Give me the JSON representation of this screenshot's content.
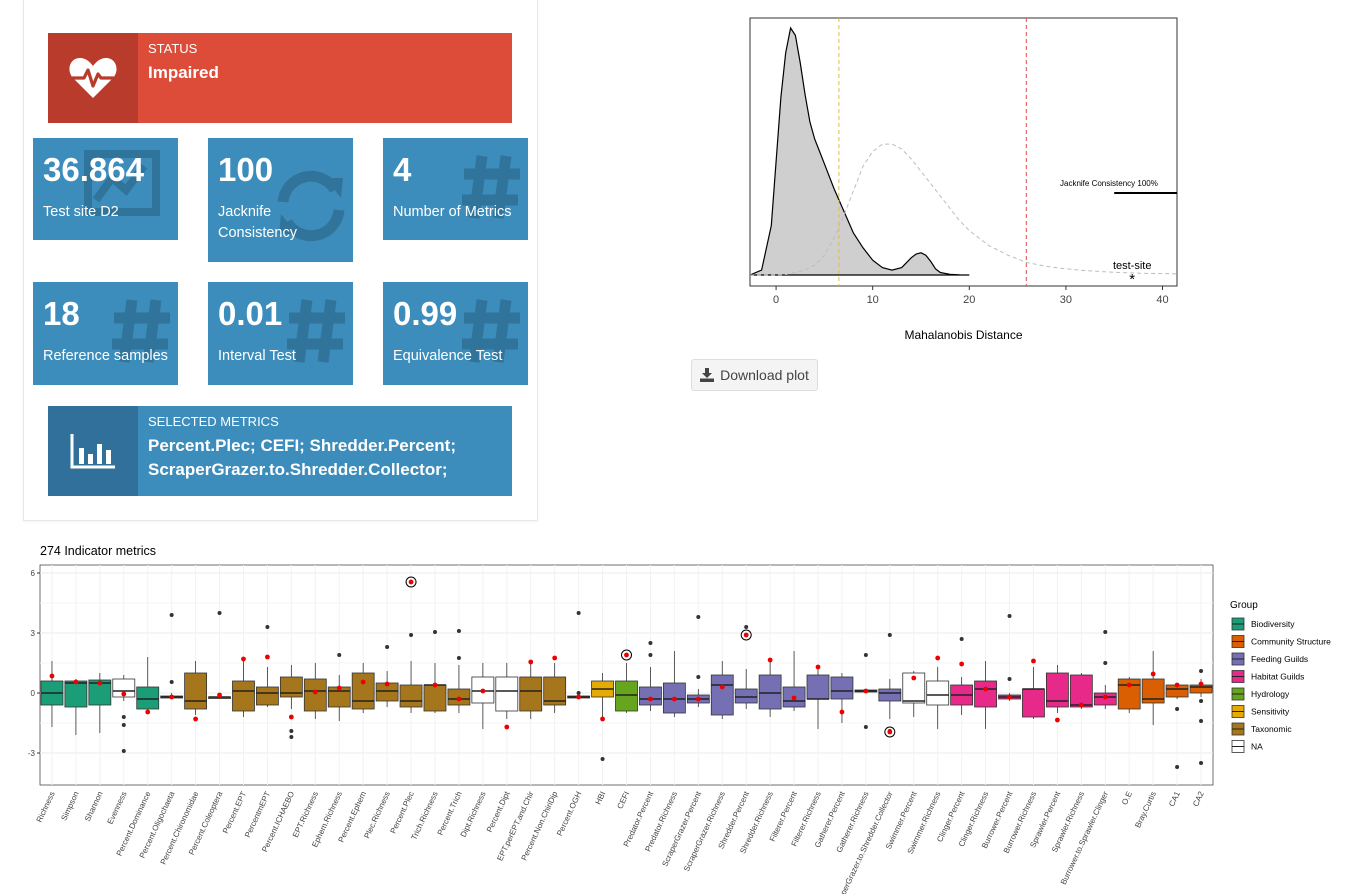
{
  "status_box": {
    "title": "STATUS",
    "value": "Impaired",
    "color": "#dd4b39",
    "icon": "heartbeat-icon"
  },
  "value_boxes": [
    {
      "value": "36.864",
      "subtitle": "Test site D2",
      "icon": "chart-icon"
    },
    {
      "value": "100",
      "subtitle": "Jacknife Consistency",
      "icon": "refresh-icon"
    },
    {
      "value": "4",
      "subtitle": "Number of Metrics",
      "icon": "hashtag-icon"
    },
    {
      "value": "18",
      "subtitle": "Reference samples",
      "icon": "hashtag-icon"
    },
    {
      "value": "0.01",
      "subtitle": "Interval Test",
      "icon": "hashtag-icon"
    },
    {
      "value": "0.99",
      "subtitle": "Equivalence Test",
      "icon": "hashtag-icon"
    }
  ],
  "selected_box": {
    "title": "SELECTED METRICS",
    "value_line1": "Percent.Plec; CEFI; Shredder.Percent;",
    "value_line2": "ScraperGrazer.to.Shredder.Collector;",
    "color": "#3c8dbc",
    "icon": "bar-chart-icon"
  },
  "download_button": {
    "label": "Download plot",
    "icon": "download-icon"
  },
  "chart_data": [
    {
      "type": "area",
      "xlabel": "Mahalanobis Distance",
      "xlim": [
        -2.7,
        41.5
      ],
      "xticks": [
        0,
        10,
        20,
        30,
        40
      ],
      "ylim": [
        0,
        1
      ],
      "grid": false,
      "reference_density": {
        "x": [
          -2.7,
          -1.5,
          -0.5,
          0.5,
          1,
          1.5,
          2,
          2.5,
          3,
          3.5,
          4,
          4.5,
          5,
          6,
          7,
          8,
          9,
          10,
          11,
          12,
          13,
          14,
          14.5,
          15,
          15.5,
          16,
          16.5,
          17,
          18,
          19,
          20
        ],
        "y": [
          0.0,
          0.02,
          0.2,
          0.72,
          0.9,
          1.0,
          0.97,
          0.86,
          0.73,
          0.62,
          0.55,
          0.5,
          0.45,
          0.35,
          0.26,
          0.17,
          0.11,
          0.06,
          0.03,
          0.02,
          0.03,
          0.07,
          0.085,
          0.09,
          0.08,
          0.055,
          0.025,
          0.01,
          0.003,
          0.001,
          0.0
        ]
      },
      "chisq_density": {
        "x": [
          -2.7,
          0,
          1,
          2,
          3,
          4,
          5,
          6,
          7,
          8,
          9,
          10,
          11,
          12,
          13,
          14,
          15,
          16,
          17,
          18,
          19,
          20,
          22,
          24,
          26,
          28,
          30,
          32,
          35,
          38,
          41.5
        ],
        "y": [
          0.0,
          0.0,
          0.002,
          0.01,
          0.02,
          0.04,
          0.08,
          0.15,
          0.24,
          0.34,
          0.44,
          0.5,
          0.53,
          0.53,
          0.51,
          0.47,
          0.42,
          0.37,
          0.32,
          0.27,
          0.22,
          0.18,
          0.12,
          0.08,
          0.05,
          0.035,
          0.025,
          0.018,
          0.011,
          0.007,
          0.005
        ]
      },
      "vline_orange": 6.5,
      "vline_red": 25.9,
      "test_site": {
        "x": 36.864,
        "label": "test-site"
      },
      "jacknife_label": "Jacknife Consistency 100%",
      "jacknife_segment": [
        35.0,
        41.5
      ],
      "colors": {
        "density_fill": "#cfcfcf",
        "vline_orange": "#e6b84a",
        "vline_red": "#e34a4a",
        "chisq": "#bdbdbd"
      }
    },
    {
      "type": "box",
      "title": "274 Indicator metrics",
      "ylim": [
        -4.6,
        6.4
      ],
      "yticks": [
        -3,
        0,
        3,
        6
      ],
      "legend_title": "Group",
      "legend_position": "right",
      "groups": [
        {
          "name": "Biodiversity",
          "color": "#1b9e77"
        },
        {
          "name": "Community Structure",
          "color": "#d95f02"
        },
        {
          "name": "Feeding Guilds",
          "color": "#7570b3"
        },
        {
          "name": "Habitat Guilds",
          "color": "#e7298a"
        },
        {
          "name": "Hydrology",
          "color": "#66a61e"
        },
        {
          "name": "Sensitivity",
          "color": "#e6ab02"
        },
        {
          "name": "Taxonomic",
          "color": "#a6761d"
        },
        {
          "name": "NA",
          "color": "#ffffff"
        }
      ],
      "metrics": [
        {
          "name": "Richness",
          "g": 0,
          "q1": -0.6,
          "med": 0,
          "q3": 0.6,
          "lo": -1.7,
          "hi": 1.6,
          "out": [],
          "test": 0.85,
          "sel": false
        },
        {
          "name": "Simpson",
          "g": 0,
          "q1": -0.7,
          "med": 0.5,
          "q3": 0.6,
          "lo": -2.1,
          "hi": 0.7,
          "out": [],
          "test": 0.55,
          "sel": false
        },
        {
          "name": "Shannon",
          "g": 0,
          "q1": -0.6,
          "med": 0.5,
          "q3": 0.65,
          "lo": -2.0,
          "hi": 1.0,
          "out": [],
          "test": 0.5,
          "sel": false
        },
        {
          "name": "Evenness",
          "g": 7,
          "q1": -0.2,
          "med": 0.1,
          "q3": 0.7,
          "lo": -0.4,
          "hi": 0.9,
          "out": [
            -1.2,
            -1.6,
            -2.9
          ],
          "test": -0.05,
          "sel": false
        },
        {
          "name": "Percent.Dominance",
          "g": 0,
          "q1": -0.8,
          "med": -0.3,
          "q3": 0.3,
          "lo": -1.0,
          "hi": 1.8,
          "out": [],
          "test": -0.95,
          "sel": false
        },
        {
          "name": "Percent.Oligochaeta",
          "g": 6,
          "q1": -0.25,
          "med": -0.2,
          "q3": -0.15,
          "lo": -0.3,
          "hi": 0.0,
          "out": [
            0.55,
            3.9
          ],
          "test": -0.2,
          "sel": false
        },
        {
          "name": "Percent.Chironomidae",
          "g": 6,
          "q1": -0.8,
          "med": -0.4,
          "q3": 1.0,
          "lo": -1.1,
          "hi": 1.6,
          "out": [],
          "test": -1.3,
          "sel": false
        },
        {
          "name": "Percent.Coleoptera",
          "g": 6,
          "q1": -0.25,
          "med": -0.2,
          "q3": -0.2,
          "lo": -0.3,
          "hi": -0.1,
          "out": [
            4.0
          ],
          "test": -0.1,
          "sel": false
        },
        {
          "name": "Percent.EPT",
          "g": 6,
          "q1": -0.9,
          "med": 0.1,
          "q3": 0.6,
          "lo": -1.2,
          "hi": 1.6,
          "out": [],
          "test": 1.7,
          "sel": false
        },
        {
          "name": "PercentmEPT",
          "g": 6,
          "q1": -0.6,
          "med": 0.0,
          "q3": 0.3,
          "lo": -0.7,
          "hi": 1.3,
          "out": [
            3.3
          ],
          "test": 1.8,
          "sel": false
        },
        {
          "name": "Percent.ICHAEBO",
          "g": 6,
          "q1": -0.2,
          "med": 0.0,
          "q3": 0.8,
          "lo": -0.8,
          "hi": 1.4,
          "out": [
            -1.9,
            -2.2
          ],
          "test": -1.2,
          "sel": false
        },
        {
          "name": "EPT.Richness",
          "g": 6,
          "q1": -0.9,
          "med": 0.1,
          "q3": 0.7,
          "lo": -1.3,
          "hi": 1.5,
          "out": [],
          "test": 0.05,
          "sel": false
        },
        {
          "name": "Ephem.Richness",
          "g": 6,
          "q1": -0.7,
          "med": 0.1,
          "q3": 0.3,
          "lo": -1.4,
          "hi": 0.9,
          "out": [
            1.9
          ],
          "test": 0.25,
          "sel": false
        },
        {
          "name": "Percent.Ephem",
          "g": 6,
          "q1": -0.8,
          "med": -0.4,
          "q3": 1.0,
          "lo": -1.0,
          "hi": 1.5,
          "out": [],
          "test": 0.55,
          "sel": false
        },
        {
          "name": "Plec.Richness",
          "g": 6,
          "q1": -0.4,
          "med": 0.1,
          "q3": 0.5,
          "lo": -0.7,
          "hi": 1.1,
          "out": [
            2.3
          ],
          "test": 0.45,
          "sel": false
        },
        {
          "name": "Percent.Plec",
          "g": 6,
          "q1": -0.7,
          "med": -0.4,
          "q3": 0.4,
          "lo": -1.0,
          "hi": 1.6,
          "out": [
            2.9
          ],
          "test": 5.55,
          "sel": true
        },
        {
          "name": "Trich.Richness",
          "g": 6,
          "q1": -0.9,
          "med": 0.4,
          "q3": 0.4,
          "lo": -1.0,
          "hi": 1.5,
          "out": [
            3.05
          ],
          "test": 0.4,
          "sel": false
        },
        {
          "name": "Percent.Trich",
          "g": 6,
          "q1": -0.6,
          "med": -0.3,
          "q3": 0.2,
          "lo": -1.0,
          "hi": 1.4,
          "out": [
            1.75,
            3.1
          ],
          "test": -0.3,
          "sel": false
        },
        {
          "name": "Dipt.Richness",
          "g": 7,
          "q1": -0.5,
          "med": 0.1,
          "q3": 0.8,
          "lo": -1.8,
          "hi": 1.5,
          "out": [],
          "test": 0.1,
          "sel": false
        },
        {
          "name": "Percent.Dipt",
          "g": 7,
          "q1": -0.9,
          "med": 0.1,
          "q3": 0.8,
          "lo": -1.3,
          "hi": 1.5,
          "out": [],
          "test": -1.7,
          "sel": false
        },
        {
          "name": "EPT.perEPT.and.Chir",
          "g": 6,
          "q1": -0.9,
          "med": 0.1,
          "q3": 0.8,
          "lo": -1.3,
          "hi": 1.5,
          "out": [],
          "test": 1.55,
          "sel": false
        },
        {
          "name": "Percent.Non.ChiriDip",
          "g": 6,
          "q1": -0.6,
          "med": -0.4,
          "q3": 0.8,
          "lo": -1.0,
          "hi": 1.5,
          "out": [],
          "test": 1.75,
          "sel": false
        },
        {
          "name": "Percent.OGH",
          "g": 6,
          "q1": -0.25,
          "med": -0.2,
          "q3": -0.15,
          "lo": -0.3,
          "hi": -0.1,
          "out": [
            0.0,
            4.0
          ],
          "test": -0.2,
          "sel": false
        },
        {
          "name": "HBI",
          "g": 5,
          "q1": -0.2,
          "med": 0.2,
          "q3": 0.6,
          "lo": -1.2,
          "hi": 1.0,
          "out": [
            -3.3
          ],
          "test": -1.3,
          "sel": false
        },
        {
          "name": "CEFI",
          "g": 4,
          "q1": -0.9,
          "med": -0.1,
          "q3": 0.6,
          "lo": -1.0,
          "hi": 1.5,
          "out": [],
          "test": 1.9,
          "sel": true
        },
        {
          "name": "Predator.Percent",
          "g": 2,
          "q1": -0.6,
          "med": -0.3,
          "q3": 0.3,
          "lo": -0.9,
          "hi": 1.3,
          "out": [
            1.9,
            2.5
          ],
          "test": -0.3,
          "sel": false
        },
        {
          "name": "Predator.Richness",
          "g": 2,
          "q1": -1.0,
          "med": -0.3,
          "q3": 0.5,
          "lo": -1.2,
          "hi": 2.1,
          "out": [],
          "test": -0.3,
          "sel": false
        },
        {
          "name": "ScraperGrazer.Percent",
          "g": 2,
          "q1": -0.5,
          "med": -0.3,
          "q3": -0.1,
          "lo": -0.7,
          "hi": 0.2,
          "out": [
            0.8,
            3.8
          ],
          "test": -0.3,
          "sel": false
        },
        {
          "name": "ScraperGrazer.Richness",
          "g": 2,
          "q1": -1.1,
          "med": 0.4,
          "q3": 0.9,
          "lo": -1.3,
          "hi": 1.6,
          "out": [],
          "test": 0.3,
          "sel": false
        },
        {
          "name": "Shredder.Percent",
          "g": 2,
          "q1": -0.5,
          "med": -0.2,
          "q3": 0.2,
          "lo": -0.8,
          "hi": 1.2,
          "out": [
            3.3
          ],
          "test": 2.9,
          "sel": true
        },
        {
          "name": "Shredder.Richness",
          "g": 2,
          "q1": -0.8,
          "med": 0.0,
          "q3": 0.9,
          "lo": -1.2,
          "hi": 1.6,
          "out": [],
          "test": 1.65,
          "sel": false
        },
        {
          "name": "Filterer.Percent",
          "g": 2,
          "q1": -0.7,
          "med": -0.4,
          "q3": 0.3,
          "lo": -0.9,
          "hi": 2.1,
          "out": [],
          "test": -0.25,
          "sel": false
        },
        {
          "name": "Filterer.Richness",
          "g": 2,
          "q1": -0.3,
          "med": -0.3,
          "q3": 0.9,
          "lo": -1.8,
          "hi": 1.3,
          "out": [],
          "test": 1.3,
          "sel": false
        },
        {
          "name": "Gatherer.Percent",
          "g": 2,
          "q1": -0.3,
          "med": 0.1,
          "q3": 0.8,
          "lo": -1.5,
          "hi": 1.0,
          "out": [],
          "test": -0.95,
          "sel": false
        },
        {
          "name": "Gatherer.Richness",
          "g": 2,
          "q1": 0.05,
          "med": 0.1,
          "q3": 0.15,
          "lo": 0.0,
          "hi": 0.2,
          "out": [
            1.9,
            -1.7
          ],
          "test": 0.1,
          "sel": false
        },
        {
          "name": "ScraperGrazer.to.Shredder.Collector",
          "g": 2,
          "q1": -0.4,
          "med": 0.0,
          "q3": 0.2,
          "lo": -1.3,
          "hi": 0.7,
          "out": [
            2.9,
            -1.9
          ],
          "test": -1.95,
          "sel": true
        },
        {
          "name": "Swimmer.Percent",
          "g": 7,
          "q1": -0.5,
          "med": -0.4,
          "q3": 1.0,
          "lo": -1.2,
          "hi": 1.1,
          "out": [],
          "test": 0.75,
          "sel": false
        },
        {
          "name": "Swimmer.Richness",
          "g": 7,
          "q1": -0.6,
          "med": -0.1,
          "q3": 0.6,
          "lo": -1.8,
          "hi": 1.3,
          "out": [],
          "test": 1.75,
          "sel": false
        },
        {
          "name": "Clinger.Percent",
          "g": 3,
          "q1": -0.6,
          "med": -0.1,
          "q3": 0.4,
          "lo": -1.1,
          "hi": 0.8,
          "out": [
            2.7
          ],
          "test": 1.45,
          "sel": false
        },
        {
          "name": "Clinger.Richness",
          "g": 3,
          "q1": -0.7,
          "med": 0.2,
          "q3": 0.6,
          "lo": -1.8,
          "hi": 1.6,
          "out": [],
          "test": 0.2,
          "sel": false
        },
        {
          "name": "Burrower.Percent",
          "g": 3,
          "q1": -0.3,
          "med": -0.2,
          "q3": -0.1,
          "lo": -0.4,
          "hi": 0.0,
          "out": [
            0.7,
            3.85
          ],
          "test": -0.2,
          "sel": false
        },
        {
          "name": "Burrower.Richness",
          "g": 3,
          "q1": -1.2,
          "med": 0.2,
          "q3": 0.2,
          "lo": -1.3,
          "hi": 1.3,
          "out": [],
          "test": 1.6,
          "sel": false
        },
        {
          "name": "Sprawler.Percent",
          "g": 3,
          "q1": -0.7,
          "med": -0.4,
          "q3": 1.0,
          "lo": -1.0,
          "hi": 1.4,
          "out": [],
          "test": -1.35,
          "sel": false
        },
        {
          "name": "Sprawler.Richness",
          "g": 3,
          "q1": -0.7,
          "med": -0.6,
          "q3": 0.9,
          "lo": -0.8,
          "hi": 1.0,
          "out": [],
          "test": -0.6,
          "sel": false
        },
        {
          "name": "Burrower.to.Sprawler.Clinger",
          "g": 3,
          "q1": -0.6,
          "med": -0.2,
          "q3": 0.0,
          "lo": -0.8,
          "hi": 0.4,
          "out": [
            1.5,
            3.05
          ],
          "test": -0.2,
          "sel": false
        },
        {
          "name": "O.E",
          "g": 1,
          "q1": -0.8,
          "med": 0.4,
          "q3": 0.7,
          "lo": -1.0,
          "hi": 0.8,
          "out": [],
          "test": 0.4,
          "sel": false
        },
        {
          "name": "Bray.Curtis",
          "g": 1,
          "q1": -0.5,
          "med": -0.3,
          "q3": 0.7,
          "lo": -1.6,
          "hi": 2.1,
          "out": [],
          "test": 0.95,
          "sel": false
        },
        {
          "name": "CA1",
          "g": 1,
          "q1": -0.2,
          "med": 0.2,
          "q3": 0.4,
          "lo": -0.3,
          "hi": 0.5,
          "out": [
            -0.8,
            -3.7
          ],
          "test": 0.4,
          "sel": false
        },
        {
          "name": "CA2",
          "g": 1,
          "q1": 0.0,
          "med": 0.3,
          "q3": 0.4,
          "lo": -0.2,
          "hi": 0.7,
          "out": [
            1.1,
            -0.4,
            -1.4,
            -3.5
          ],
          "test": 0.45,
          "sel": false
        }
      ]
    }
  ]
}
